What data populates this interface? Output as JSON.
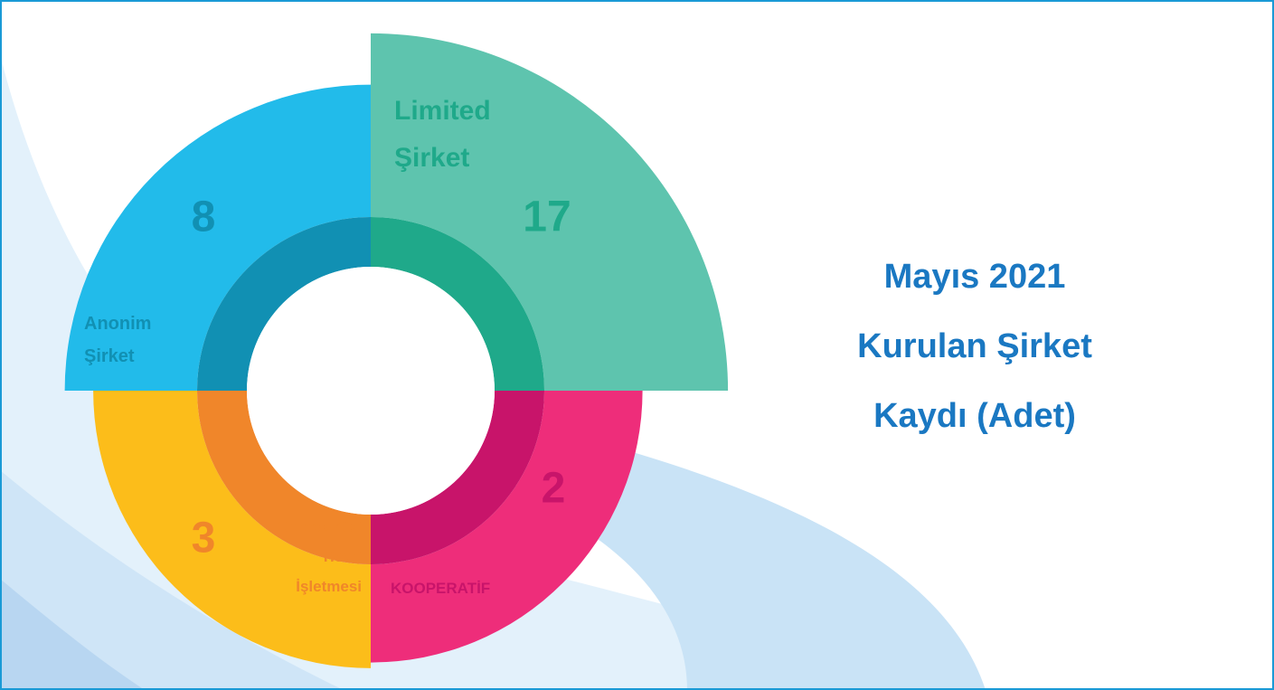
{
  "chart_data": {
    "type": "polar",
    "title": "Mayıs 2021 Kurulan Şirket Kaydı (Adet)",
    "categories": [
      "Limited Şirket",
      "KOOPERATİF",
      "Gerçek Kisi Ticari İşletmesi",
      "Anonim Şirket"
    ],
    "values": [
      17,
      2,
      3,
      8
    ],
    "colors": [
      "#5ec4ae",
      "#ee2d7a",
      "#fcbd1a",
      "#22bbea"
    ],
    "inner_colors": [
      "#1fa98a",
      "#c8146a",
      "#f0862a",
      "#1190b3"
    ]
  }
}
